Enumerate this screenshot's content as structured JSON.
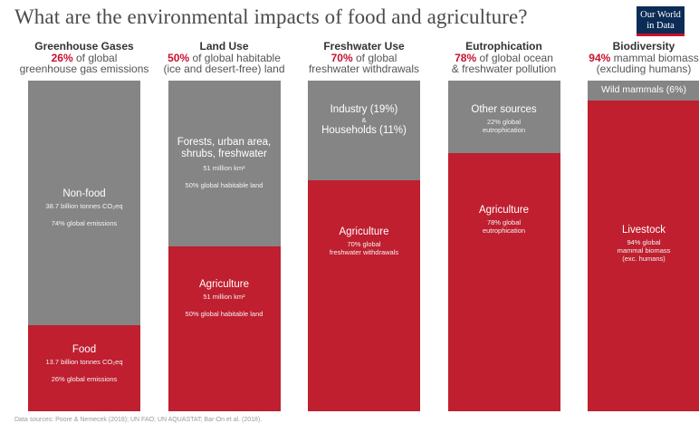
{
  "title": "What are the environmental impacts of food and agriculture?",
  "logo": {
    "line1": "Our World",
    "line2": "in Data"
  },
  "footer": "Data sources: Poore & Nemecek (2018); UN FAO; UN AQUASTAT; Bar-On et al. (2018).",
  "colors": {
    "food": "#bf1f2f",
    "other": "#858585",
    "pct": "#c8102e"
  },
  "chart_data": {
    "type": "bar",
    "stacked": true,
    "ylim": [
      0,
      100
    ],
    "categories": [
      "Greenhouse Gases",
      "Land Use",
      "Freshwater Use",
      "Eutrophication",
      "Biodiversity"
    ],
    "series": [
      {
        "name": "",
        "values": [
          26,
          50,
          70,
          78,
          94
        ]
      },
      {
        "name": "",
        "values": [
          74,
          50,
          30,
          22,
          6
        ]
      }
    ],
    "columns": [
      {
        "heading": "Greenhouse Gases",
        "pct": "26%",
        "desc1": "of global",
        "desc2": "greenhouse gas emissions",
        "food_pct": 26,
        "top": {
          "name": "Non-food",
          "detail": "38.7 billion tonnes CO₂eq",
          "share": "74% global emissions"
        },
        "bottom": {
          "name": "Food",
          "detail": "13.7 billion tonnes CO₂eq",
          "share": "26% global emissions"
        }
      },
      {
        "heading": "Land Use",
        "pct": "50%",
        "desc1": "of global habitable",
        "desc2": "(ice and desert-free) land",
        "food_pct": 50,
        "top": {
          "name": "Forests, urban area, shrubs, freshwater",
          "detail": "51 million km²",
          "share": "50% global habitable land"
        },
        "bottom": {
          "name": "Agriculture",
          "detail": "51 million km²",
          "share": "50% global habitable land"
        }
      },
      {
        "heading": "Freshwater Use",
        "pct": "70%",
        "desc1": "of global",
        "desc2": "freshwater withdrawals",
        "food_pct": 70,
        "top": {
          "name": "Industry (19%)",
          "detail": "&",
          "share": "Households (11%)"
        },
        "bottom": {
          "name": "Agriculture",
          "detail": "70% global",
          "share": "freshwater withdrawals"
        }
      },
      {
        "heading": "Eutrophication",
        "pct": "78%",
        "desc1": "of global ocean",
        "desc2": "& freshwater pollution",
        "food_pct": 78,
        "top": {
          "name": "Other sources",
          "detail": "22% global",
          "share": "eutrophication"
        },
        "bottom": {
          "name": "Agriculture",
          "detail": "78% global",
          "share": "eutrophication"
        }
      },
      {
        "heading": "Biodiversity",
        "pct": "94%",
        "desc1": "mammal biomass",
        "desc2": "(excluding humans)",
        "food_pct": 94,
        "top": {
          "name": "Wild mammals (6%)",
          "detail": "",
          "share": ""
        },
        "bottom": {
          "name": "Livestock",
          "detail": "94% global",
          "share": "mammal biomass",
          "extra": "(exc. humans)"
        }
      }
    ]
  }
}
